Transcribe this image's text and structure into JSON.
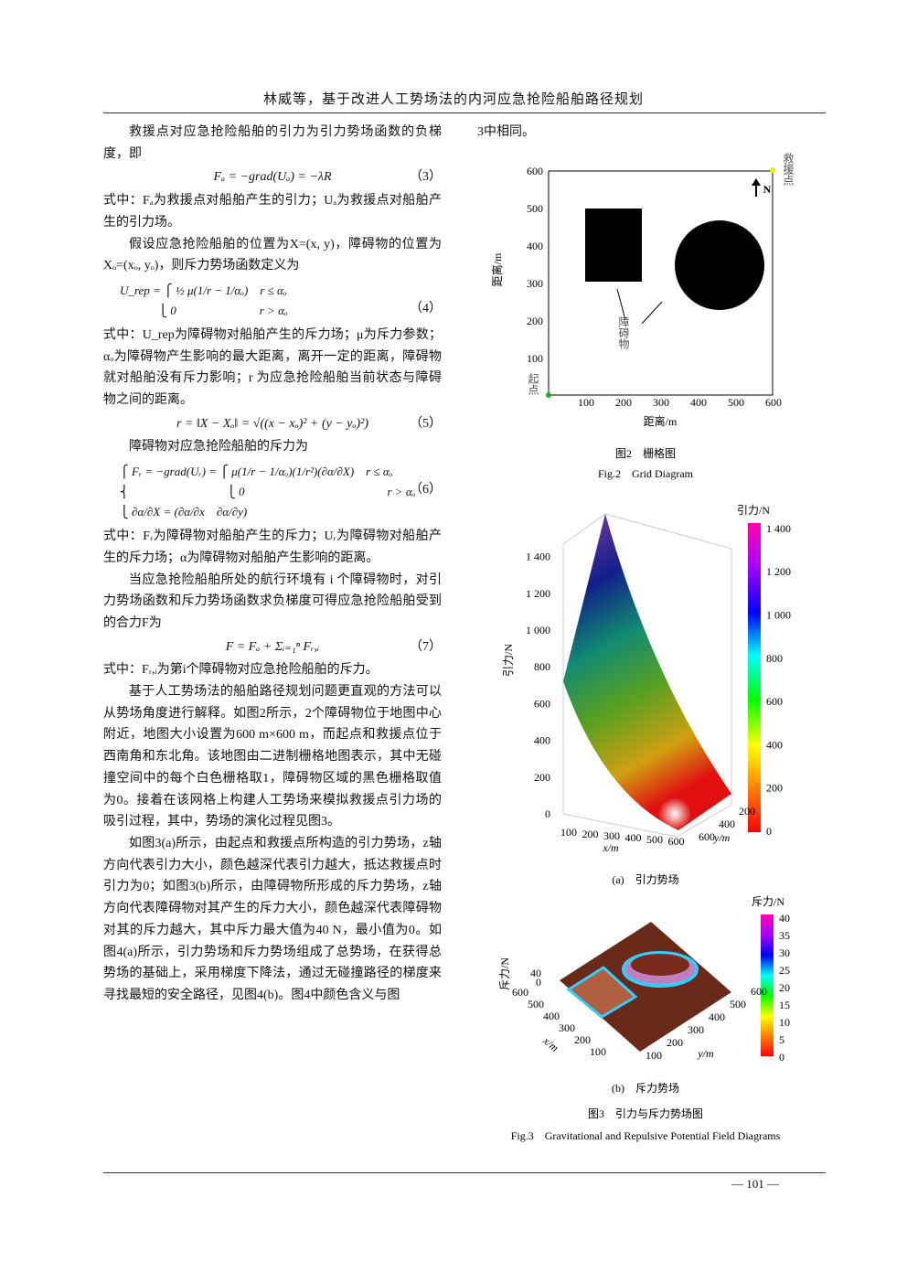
{
  "header": {
    "title": "林威等，基于改进人工势场法的内河应急抢险船舶路径规划"
  },
  "left": [
    {
      "kind": "p",
      "text": "救援点对应急抢险船舶的引力为引力势场函数的负梯度，即"
    },
    {
      "kind": "eq",
      "text": "Fₐ = −grad(Uₐ) = −λR",
      "num": "（3）"
    },
    {
      "kind": "p0",
      "text": "式中：Fₐ为救援点对船舶产生的引力；Uₐ为救援点对船舶产生的引力场。"
    },
    {
      "kind": "p",
      "text": "假设应急抢险船舶的位置为X=(x, y)，障碍物的位置为Xₒ=(xₒ, yₒ)，则斥力势场函数定义为"
    },
    {
      "kind": "eq2",
      "lines": [
        "U_rep = ⎧ ½ μ(1/r − 1/αₒ)　r ≤ αₒ",
        "　　　 ⎩ 0　　　　　　　r > αₒ"
      ],
      "num": "（4）"
    },
    {
      "kind": "p0",
      "text": "式中：U_rep为障碍物对船舶产生的斥力场；μ为斥力参数；αₒ为障碍物产生影响的最大距离，离开一定的距离，障碍物就对船舶没有斥力影响；r 为应急抢险船舶当前状态与障碍物之间的距离。"
    },
    {
      "kind": "eq",
      "text": "r = ‖X − Xₒ‖ = √((x − xₒ)² + (y − yₒ)²)",
      "num": "（5）"
    },
    {
      "kind": "p",
      "text": "障碍物对应急抢险船舶的斥力为"
    },
    {
      "kind": "eq2",
      "lines": [
        "⎧ Fᵣ = −grad(Uᵣ) = ⎧ μ(1/r − 1/αₒ)(1/r²)(∂α/∂X)　r ≤ αₒ",
        "⎨　　　　　　　　 ⎩ 0　　　　　　　　　　　　r > αₒ",
        "⎩ ∂α/∂X = (∂α/∂x　∂α/∂y)"
      ],
      "num": "（6）"
    },
    {
      "kind": "p0",
      "text": "式中：Fᵣ为障碍物对船舶产生的斥力；Uᵣ为障碍物对船舶产生的斥力场；α为障碍物对船舶产生影响的距离。"
    },
    {
      "kind": "p",
      "text": "当应急抢险船舶所处的航行环境有 i 个障碍物时，对引力势场函数和斥力势场函数求负梯度可得应急抢险船舶受到的合力F为"
    },
    {
      "kind": "eq",
      "text": "F = Fₐ + Σᵢ₌₁ⁿ Fᵣ,ᵢ",
      "num": "（7）"
    },
    {
      "kind": "p0",
      "text": "式中：Fᵣ,ᵢ为第i个障碍物对应急抢险船舶的斥力。"
    },
    {
      "kind": "p",
      "text": "基于人工势场法的船舶路径规划问题更直观的方法可以从势场角度进行解释。如图2所示，2个障碍物位于地图中心附近，地图大小设置为600 m×600 m，而起点和救援点位于西南角和东北角。该地图由二进制栅格地图表示，其中无碰撞空间中的每个白色栅格取1，障碍物区域的黑色栅格取值为0。接着在该网格上构建人工势场来模拟救援点引力场的吸引过程，其中，势场的演化过程见图3。"
    },
    {
      "kind": "p",
      "text": "如图3(a)所示，由起点和救援点所构造的引力势场，z轴方向代表引力大小，颜色越深代表引力越大，抵达救援点时引力为0；如图3(b)所示，由障碍物所形成的斥力势场，z轴方向代表障碍物对其产生的斥力大小，颜色越深代表障碍物对其的斥力越大，其中斥力最大值为40 N，最小值为0。如图4(a)所示，引力势场和斥力势场组成了总势场，在获得总势场的基础上，采用梯度下降法，通过无碰撞路径的梯度来寻找最短的安全路径，见图4(b)。图4中颜色含义与图"
    }
  ],
  "right_text": "3中相同。",
  "fig2": {
    "yticks": [
      "600",
      "500",
      "400",
      "300",
      "200",
      "100"
    ],
    "xticks": [
      "100",
      "200",
      "300",
      "400",
      "500",
      "600"
    ],
    "ylabel": "距离/m",
    "xlabel": "距离/m",
    "goal": "救援点",
    "north": "N",
    "obstacle": "障碍物",
    "start": "起点",
    "caption_cn": "图2　栅格图",
    "caption_en": "Fig.2　Grid Diagram"
  },
  "fig3a": {
    "zlabel": "引力/N",
    "zticks": [
      "0",
      "200",
      "400",
      "600",
      "800",
      "1 000",
      "1 200",
      "1 400"
    ],
    "cbar_label": "引力/N",
    "cbar_ticks": [
      "0",
      "200",
      "400",
      "600",
      "800",
      "1 000",
      "1 200",
      "1 400"
    ],
    "xticks": [
      "100",
      "200",
      "300",
      "400",
      "500",
      "600"
    ],
    "xlabel": "x/m",
    "yticks": [
      "600",
      "400",
      "200"
    ],
    "ylabel": "y/m",
    "caption": "(a)　引力势场"
  },
  "fig3b": {
    "zlabel": "斥力/N",
    "zticks": [
      "40",
      "0"
    ],
    "cbar_label": "斥力/N",
    "cbar_ticks": [
      "0",
      "5",
      "10",
      "15",
      "20",
      "25",
      "30",
      "35",
      "40"
    ],
    "xticks": [
      "600",
      "500",
      "400",
      "300",
      "200",
      "100"
    ],
    "xlabel": "x/m",
    "yticks": [
      "100",
      "200",
      "300",
      "400",
      "500",
      "600"
    ],
    "ylabel": "y/m",
    "caption": "(b)　斥力势场"
  },
  "fig3": {
    "caption_cn": "图3　引力与斥力势场图",
    "caption_en": "Fig.3　Gravitational and Repulsive Potential Field Diagrams"
  },
  "footer": {
    "page": "— 101 —"
  }
}
